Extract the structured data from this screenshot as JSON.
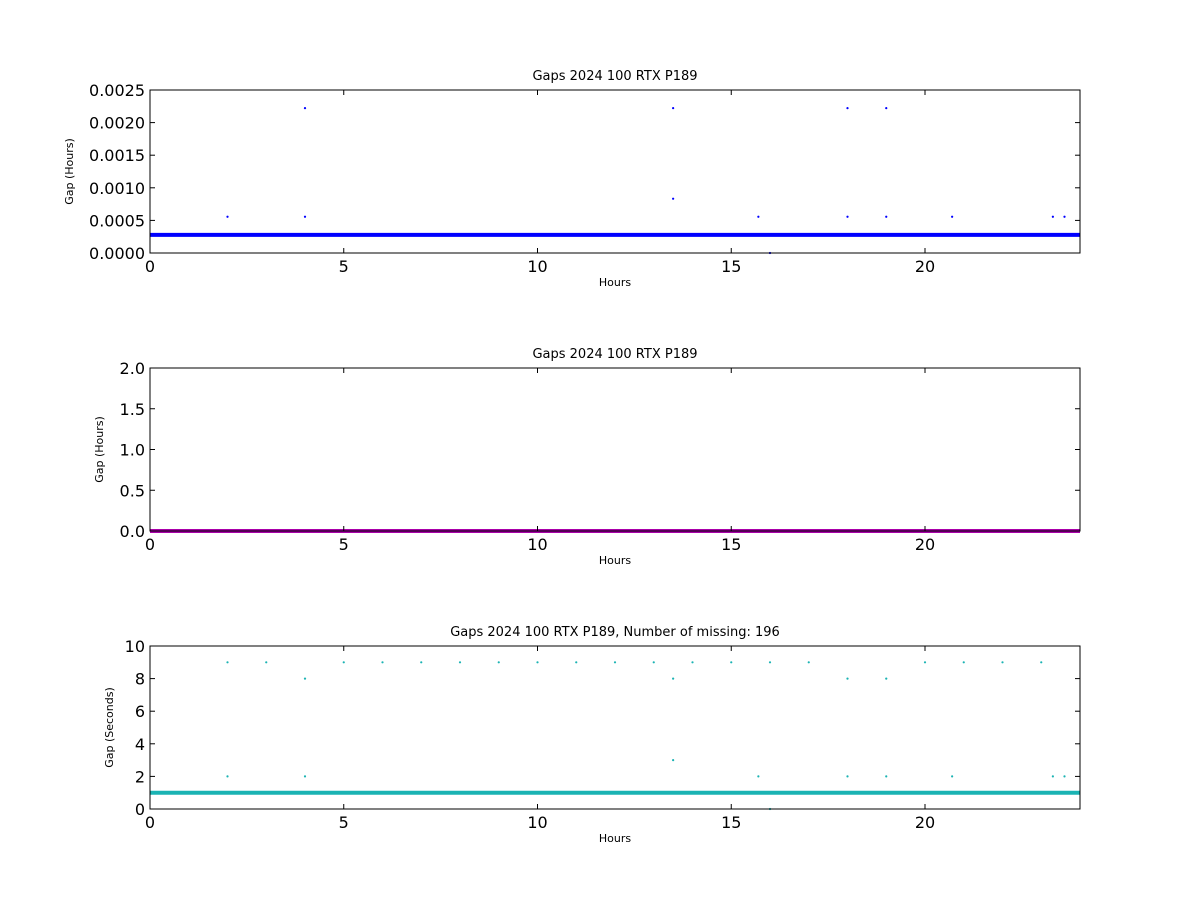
{
  "chart_data": [
    {
      "type": "scatter",
      "title": "Gaps 2024 100 RTX  P189",
      "xlabel": "Hours",
      "ylabel": "Gap (Hours)",
      "xlim": [
        0,
        24
      ],
      "ylim": [
        0,
        0.0025
      ],
      "xticks": [
        0,
        5,
        10,
        15,
        20
      ],
      "xtick_labels": [
        "0",
        "5",
        "10",
        "15",
        "20"
      ],
      "yticks": [
        0,
        0.0005,
        0.001,
        0.0015,
        0.002,
        0.0025
      ],
      "ytick_labels": [
        "0.0000",
        "0.0005",
        "0.0010",
        "0.0015",
        "0.0020",
        "0.0025"
      ],
      "grid": false,
      "color": "#0000ff",
      "baseline": 0.000278,
      "points": [
        [
          2.0,
          0.000556
        ],
        [
          4.0,
          0.002222
        ],
        [
          4.0,
          0.000556
        ],
        [
          13.5,
          0.002222
        ],
        [
          13.5,
          0.000833
        ],
        [
          15.7,
          0.000556
        ],
        [
          16.0,
          0.0
        ],
        [
          18.0,
          0.002222
        ],
        [
          18.0,
          0.000556
        ],
        [
          19.0,
          0.002222
        ],
        [
          19.0,
          0.000556
        ],
        [
          20.7,
          0.000556
        ],
        [
          23.3,
          0.000556
        ],
        [
          23.6,
          0.000556
        ]
      ]
    },
    {
      "type": "scatter",
      "title": "Gaps 2024 100 RTX  P189",
      "xlabel": "Hours",
      "ylabel": "Gap (Hours)",
      "xlim": [
        0,
        24
      ],
      "ylim": [
        0,
        2.0
      ],
      "xticks": [
        0,
        5,
        10,
        15,
        20
      ],
      "xtick_labels": [
        "0",
        "5",
        "10",
        "15",
        "20"
      ],
      "yticks": [
        0,
        0.5,
        1.0,
        1.5,
        2.0
      ],
      "ytick_labels": [
        "0.0",
        "0.5",
        "1.0",
        "1.5",
        "2.0"
      ],
      "grid": false,
      "color": "#aa00aa",
      "baseline": 0.0,
      "points": []
    },
    {
      "type": "scatter",
      "title": "Gaps 2024 100 RTX  P189, Number of missing: 196",
      "xlabel": "Hours",
      "ylabel": "Gap (Seconds)",
      "xlim": [
        0,
        24
      ],
      "ylim": [
        0,
        10
      ],
      "xticks": [
        0,
        5,
        10,
        15,
        20
      ],
      "xtick_labels": [
        "0",
        "5",
        "10",
        "15",
        "20"
      ],
      "yticks": [
        0,
        2,
        4,
        6,
        8,
        10
      ],
      "ytick_labels": [
        "0",
        "2",
        "4",
        "6",
        "8",
        "10"
      ],
      "grid": false,
      "color": "#1ab3b3",
      "baseline": 1.0,
      "points": [
        [
          2,
          9
        ],
        [
          3,
          9
        ],
        [
          5,
          9
        ],
        [
          6,
          9
        ],
        [
          7,
          9
        ],
        [
          8,
          9
        ],
        [
          9,
          9
        ],
        [
          10,
          9
        ],
        [
          11,
          9
        ],
        [
          12,
          9
        ],
        [
          13,
          9
        ],
        [
          14,
          9
        ],
        [
          15,
          9
        ],
        [
          16,
          9
        ],
        [
          17,
          9
        ],
        [
          20,
          9
        ],
        [
          21,
          9
        ],
        [
          22,
          9
        ],
        [
          23,
          9
        ],
        [
          4,
          8
        ],
        [
          13.5,
          8
        ],
        [
          18,
          8
        ],
        [
          19,
          8
        ],
        [
          13.5,
          3
        ],
        [
          2,
          2
        ],
        [
          4,
          2
        ],
        [
          15.7,
          2
        ],
        [
          18,
          2
        ],
        [
          19,
          2
        ],
        [
          20.7,
          2
        ],
        [
          23.3,
          2
        ],
        [
          23.6,
          2
        ],
        [
          16,
          0
        ]
      ]
    }
  ]
}
